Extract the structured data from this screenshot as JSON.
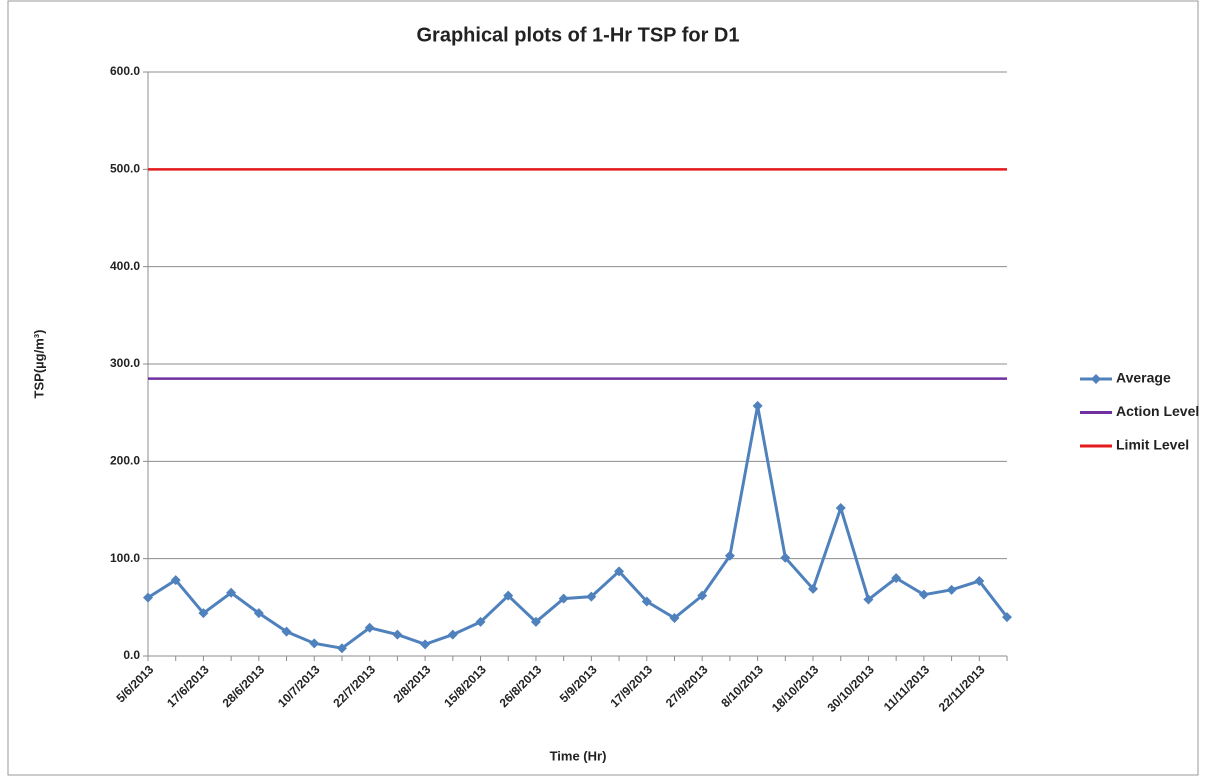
{
  "chart_data": {
    "type": "line",
    "title": "Graphical plots of 1-Hr TSP for D1",
    "x_label": "Time (Hr)",
    "y_label": "TSP(µg/m³)",
    "categories": [
      "5/6/2013",
      null,
      "17/6/2013",
      null,
      "28/6/2013",
      null,
      "10/7/2013",
      null,
      "22/7/2013",
      null,
      "2/8/2013",
      null,
      "15/8/2013",
      null,
      "26/8/2013",
      null,
      "5/9/2013",
      null,
      "17/9/2013",
      null,
      "27/9/2013",
      null,
      "8/10/2013",
      null,
      "18/10/2013",
      null,
      "30/10/2013",
      null,
      "11/11/2013",
      null,
      "22/11/2013",
      null
    ],
    "series": [
      {
        "name": "Average",
        "color": "#4f81bd",
        "marker": "diamond",
        "values": [
          60,
          78,
          44,
          65,
          44,
          25,
          13,
          8,
          29,
          22,
          12,
          22,
          35,
          62,
          35,
          59,
          61,
          87,
          56,
          39,
          62,
          103,
          257,
          101,
          69,
          152,
          58,
          80,
          63,
          68,
          77,
          40
        ]
      },
      {
        "name": "Action Level",
        "color": "#7030a0",
        "values": [
          285,
          285,
          285,
          285,
          285,
          285,
          285,
          285,
          285,
          285,
          285,
          285,
          285,
          285,
          285,
          285,
          285,
          285,
          285,
          285,
          285,
          285,
          285,
          285,
          285,
          285,
          285,
          285,
          285,
          285,
          285,
          285
        ]
      },
      {
        "name": "Limit Level",
        "color": "#e41a1c",
        "values": [
          500,
          500,
          500,
          500,
          500,
          500,
          500,
          500,
          500,
          500,
          500,
          500,
          500,
          500,
          500,
          500,
          500,
          500,
          500,
          500,
          500,
          500,
          500,
          500,
          500,
          500,
          500,
          500,
          500,
          500,
          500,
          500
        ]
      }
    ],
    "ylim": [
      0,
      600
    ],
    "yticks": [
      {
        "value": 0,
        "label": "0.0"
      },
      {
        "value": 100,
        "label": "100.0"
      },
      {
        "value": 200,
        "label": "200.0"
      },
      {
        "value": 300,
        "label": "300.0"
      },
      {
        "value": 400,
        "label": "400.0"
      },
      {
        "value": 500,
        "label": "500.0"
      },
      {
        "value": 600,
        "label": "600.0"
      }
    ],
    "grid": true,
    "legend": "right"
  }
}
